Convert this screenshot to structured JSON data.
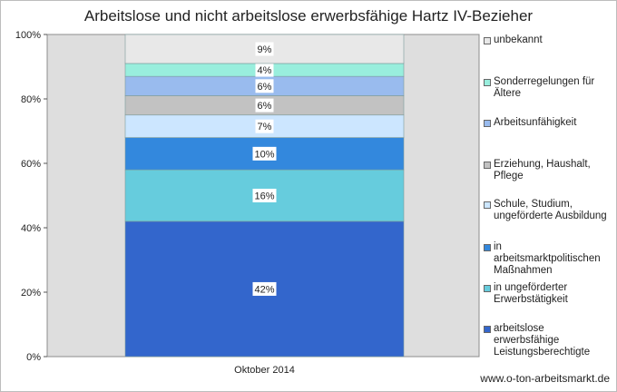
{
  "chart_data": {
    "type": "bar",
    "stacked": true,
    "title": "Arbeitslose und nicht arbeitslose erwerbsfähige Hartz IV-Bezieher",
    "categories": [
      "Oktober 2014"
    ],
    "yticks": [
      "0%",
      "20%",
      "40%",
      "60%",
      "80%",
      "100%"
    ],
    "ylim": [
      0,
      100
    ],
    "grid": false,
    "legend_position": "right",
    "series": [
      {
        "name": "arbeitslose erwerbsfähige Leistungsberechtigte",
        "values": [
          42
        ],
        "label": "42%",
        "color": "#3366cc"
      },
      {
        "name": "in ungeförderter Erwerbstätigkeit",
        "values": [
          16
        ],
        "label": "16%",
        "color": "#66ccdd"
      },
      {
        "name": "in arbeitsmarktpolitischen Maßnahmen",
        "values": [
          10
        ],
        "label": "10%",
        "color": "#3388dd"
      },
      {
        "name": "Schule, Studium, ungeförderte Ausbildung",
        "values": [
          7
        ],
        "label": "7%",
        "color": "#cce6ff"
      },
      {
        "name": "Erziehung, Haushalt, Pflege",
        "values": [
          6
        ],
        "label": "6%",
        "color": "#c2c2c2"
      },
      {
        "name": "Arbeitsunfähigkeit",
        "values": [
          6
        ],
        "label": "6%",
        "color": "#99bbee"
      },
      {
        "name": "Sonderregelungen für Ältere",
        "values": [
          4
        ],
        "label": "4%",
        "color": "#99eedd"
      },
      {
        "name": "unbekannt",
        "values": [
          9
        ],
        "label": "9%",
        "color": "#e8e8e8"
      }
    ]
  },
  "legend": [
    {
      "lines": [
        "unbekannt"
      ],
      "color": "#e8e8e8"
    },
    {
      "lines": [
        "Sonderregelungen für",
        "Ältere"
      ],
      "color": "#99eedd"
    },
    {
      "lines": [
        "Arbeitsunfähigkeit"
      ],
      "color": "#99bbee"
    },
    {
      "lines": [
        "Erziehung, Haushalt,",
        "Pflege"
      ],
      "color": "#c2c2c2"
    },
    {
      "lines": [
        "Schule, Studium,",
        "ungeförderte Ausbildung"
      ],
      "color": "#cce6ff"
    },
    {
      "lines": [
        "in",
        "arbeitsmarktpolitischen",
        "Maßnahmen"
      ],
      "color": "#3388dd"
    },
    {
      "lines": [
        "in ungeförderter",
        "Erwerbstätigkeit"
      ],
      "color": "#66ccdd"
    },
    {
      "lines": [
        "arbeitslose",
        "erwerbsfähige",
        "Leistungsberechtigte"
      ],
      "color": "#3366cc"
    }
  ],
  "watermark": "www.o-ton-arbeitsmarkt.de"
}
